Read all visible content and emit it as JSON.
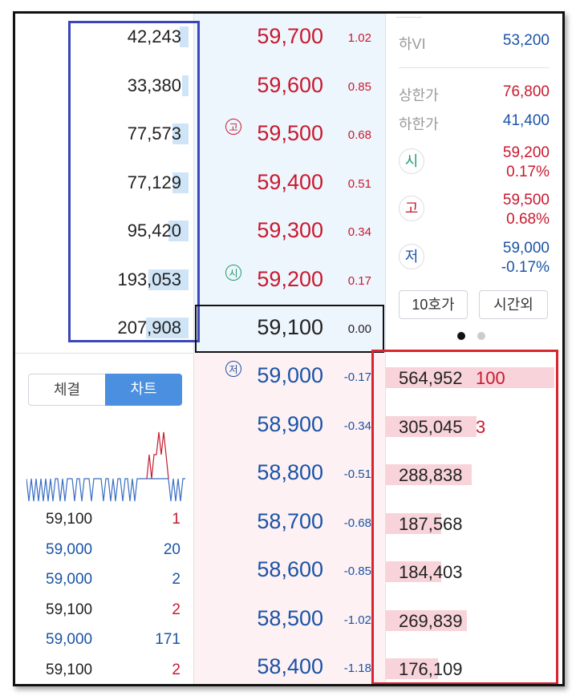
{
  "ask_levels": [
    {
      "volume": "42,243",
      "price": "59,700",
      "pct": "1.02",
      "volume_fraction": 0.08
    },
    {
      "volume": "33,380",
      "price": "59,600",
      "pct": "0.85",
      "volume_fraction": 0.06
    },
    {
      "volume": "77,573",
      "price": "59,500",
      "pct": "0.68",
      "volume_fraction": 0.14,
      "badge": "고"
    },
    {
      "volume": "77,129",
      "price": "59,400",
      "pct": "0.51",
      "volume_fraction": 0.14
    },
    {
      "volume": "95,420",
      "price": "59,300",
      "pct": "0.34",
      "volume_fraction": 0.18
    },
    {
      "volume": "193,053",
      "price": "59,200",
      "pct": "0.17",
      "volume_fraction": 0.36,
      "badge": "시"
    },
    {
      "volume": "207,908",
      "price": "59,100",
      "pct": "0.00",
      "volume_fraction": 0.38
    }
  ],
  "bid_levels": [
    {
      "price": "59,000",
      "pct": "-0.17",
      "volume": "564,952",
      "extra": "100",
      "volume_fraction": 1.0,
      "badge": "저"
    },
    {
      "price": "58,900",
      "pct": "-0.34",
      "volume": "305,045",
      "extra": "3",
      "volume_fraction": 0.54
    },
    {
      "price": "58,800",
      "pct": "-0.51",
      "volume": "288,838",
      "extra": "",
      "volume_fraction": 0.51
    },
    {
      "price": "58,700",
      "pct": "-0.68",
      "volume": "187,568",
      "extra": "",
      "volume_fraction": 0.33
    },
    {
      "price": "58,600",
      "pct": "-0.85",
      "volume": "184,403",
      "extra": "",
      "volume_fraction": 0.33
    },
    {
      "price": "58,500",
      "pct": "-1.02",
      "volume": "269,839",
      "extra": "",
      "volume_fraction": 0.48
    },
    {
      "price": "58,400",
      "pct": "-1.18",
      "volume": "176,109",
      "extra": "",
      "volume_fraction": 0.31
    }
  ],
  "info": {
    "vi_label": "하VI",
    "vi_value": "53,200",
    "upper_label": "상한가",
    "upper_value": "76,800",
    "lower_label": "하한가",
    "lower_value": "41,400",
    "open_badge": "시",
    "open_value": "59,200",
    "open_pct": "0.17%",
    "high_badge": "고",
    "high_value": "59,500",
    "high_pct": "0.68%",
    "low_badge": "저",
    "low_value": "59,000",
    "low_pct": "-0.17%"
  },
  "buttons": {
    "ten_quote": "10호가",
    "after_hours": "시간외"
  },
  "tabs": {
    "trades": "체결",
    "chart": "차트"
  },
  "trades": [
    {
      "price": "59,100",
      "qty": "1",
      "side": "buy"
    },
    {
      "price": "59,000",
      "qty": "20",
      "side": "sell"
    },
    {
      "price": "59,000",
      "qty": "2",
      "side": "sell"
    },
    {
      "price": "59,100",
      "qty": "2",
      "side": "buy"
    },
    {
      "price": "59,000",
      "qty": "171",
      "side": "sell"
    },
    {
      "price": "59,100",
      "qty": "2",
      "side": "buy"
    }
  ],
  "colors": {
    "up": "#c8192f",
    "down": "#1b53a6",
    "ask_bar": "#cfe5f7",
    "bid_bar": "#f8d4da",
    "highlight_blue": "#3b47b8",
    "highlight_red": "#d9252f",
    "tab_active": "#4a8fe0"
  },
  "icons": {
    "pager": "page-dots-icon",
    "mini_chart": "tick-chart-icon"
  }
}
